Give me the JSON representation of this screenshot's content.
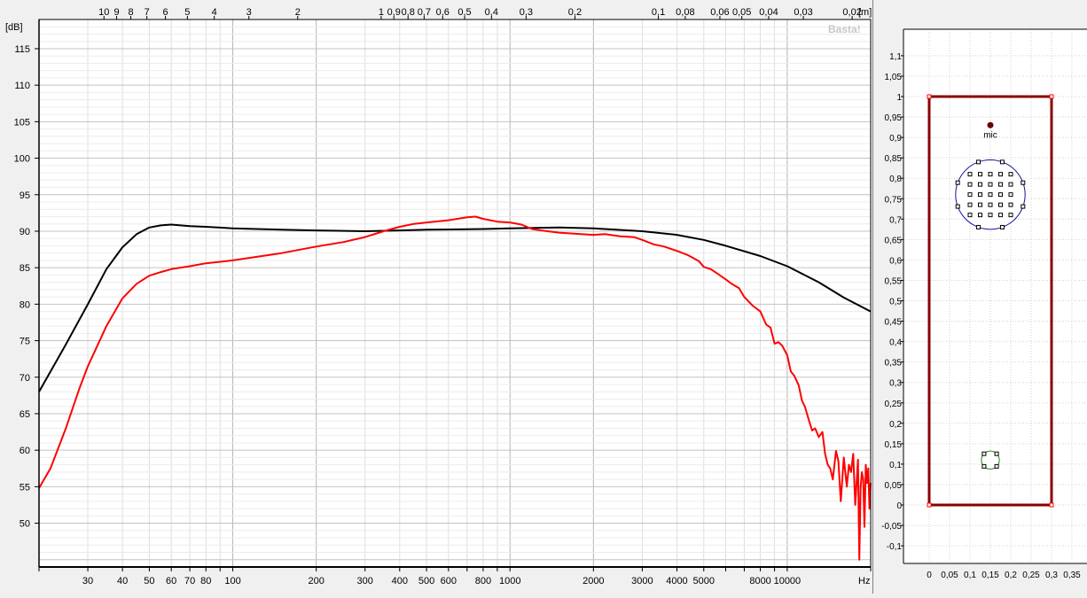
{
  "response_chart": {
    "ylabel": "[dB]",
    "xunit_label": "Hz",
    "top_unit_label": "[m]",
    "watermark": "Basta!",
    "y_ticks": [
      "115",
      "110",
      "105",
      "100",
      "95",
      "90",
      "85",
      "80",
      "75",
      "70",
      "65",
      "60",
      "55",
      "50"
    ],
    "x_tick_labels": [
      "30",
      "40",
      "50",
      "60",
      "70",
      "80",
      "100",
      "200",
      "300",
      "400",
      "500",
      "600",
      "800",
      "1000",
      "2000",
      "3000",
      "4000",
      "5000",
      "8000",
      "10000"
    ],
    "top_tick_labels": [
      "10",
      "9",
      "8",
      "7",
      "6",
      "5",
      "4",
      "3",
      "2",
      "1",
      "0,9",
      "0,8",
      "0,7",
      "0,6",
      "0,5",
      "0,4",
      "0,3",
      "0,2",
      "0,1",
      "0,08",
      "0,06",
      "0,05",
      "0,04",
      "0,03",
      "0,02"
    ],
    "colors": {
      "black_curve": "#000000",
      "red_curve": "#ff0000",
      "grid": "#c8c8c8",
      "bg": "#ffffff"
    }
  },
  "chart_data": [
    {
      "type": "line",
      "title": "",
      "xlabel": "Hz",
      "ylabel": "[dB]",
      "xscale": "log",
      "xlim": [
        20,
        20000
      ],
      "ylim": [
        44,
        119
      ],
      "grid": true,
      "series": [
        {
          "color": "#000000",
          "x": [
            20,
            25,
            30,
            35,
            40,
            45,
            50,
            55,
            60,
            70,
            80,
            100,
            150,
            200,
            300,
            400,
            500,
            800,
            1000,
            1500,
            2000,
            3000,
            4000,
            5000,
            6000,
            8000,
            10000,
            13000,
            16000,
            20000
          ],
          "y": [
            68,
            74.5,
            80,
            84.8,
            87.8,
            89.6,
            90.5,
            90.8,
            90.9,
            90.7,
            90.6,
            90.4,
            90.2,
            90.1,
            90.0,
            90.1,
            90.2,
            90.3,
            90.4,
            90.5,
            90.4,
            90.0,
            89.5,
            88.8,
            88.0,
            86.6,
            85.2,
            83.0,
            80.9,
            79.0
          ]
        },
        {
          "color": "#ff0000",
          "x": [
            20,
            22,
            25,
            28,
            30,
            35,
            40,
            45,
            50,
            55,
            60,
            70,
            80,
            100,
            150,
            200,
            250,
            300,
            350,
            400,
            450,
            500,
            600,
            700,
            750,
            800,
            900,
            1000,
            1100,
            1200,
            1300,
            1500,
            1800,
            2000,
            2200,
            2500,
            2800,
            3000,
            3300,
            3600,
            4000,
            4400,
            4800,
            5000,
            5300,
            5600,
            6000,
            6300,
            6700,
            7000,
            7500,
            8000,
            8400,
            8700,
            9000,
            9300,
            9600,
            10000,
            10300,
            10600,
            11000,
            11300,
            11600,
            12000,
            12300,
            12600,
            13000,
            13400,
            13700,
            14000,
            14300,
            14600,
            15000,
            15300,
            15600,
            16000,
            16400,
            16700,
            17000,
            17300,
            17600,
            18000,
            18200,
            18400,
            18600,
            18800,
            19000,
            19200,
            19400,
            19600,
            19800,
            20000
          ],
          "y": [
            54.8,
            57.5,
            63,
            68.5,
            71.5,
            77.0,
            80.8,
            82.8,
            83.9,
            84.4,
            84.8,
            85.2,
            85.6,
            86.0,
            87.0,
            87.9,
            88.5,
            89.2,
            90.0,
            90.6,
            91.0,
            91.2,
            91.5,
            91.9,
            92.0,
            91.7,
            91.3,
            91.2,
            90.9,
            90.3,
            90.1,
            89.8,
            89.6,
            89.5,
            89.6,
            89.3,
            89.2,
            88.8,
            88.2,
            87.9,
            87.3,
            86.7,
            85.9,
            85.1,
            84.8,
            84.2,
            83.4,
            82.8,
            82.2,
            81.0,
            79.8,
            79.0,
            77.2,
            76.8,
            74.6,
            74.8,
            74.3,
            73.0,
            70.8,
            70.2,
            68.9,
            66.8,
            65.9,
            64.0,
            62.7,
            63.0,
            61.8,
            62.5,
            59.5,
            58.0,
            57.5,
            56.0,
            59.9,
            58.5,
            53.0,
            59.0,
            55.0,
            58.0,
            57.0,
            59.5,
            52.5,
            58.7,
            45.0,
            55.0,
            57.0,
            56.0,
            49.5,
            58.0,
            55.5,
            57.5,
            52.0,
            55.5
          ]
        }
      ]
    },
    {
      "type": "scatter",
      "title": "",
      "xlabel": "",
      "ylabel": "",
      "xlim": [
        -0.02,
        0.37
      ],
      "ylim": [
        -0.15,
        1.17
      ],
      "grid": true,
      "x_ticks": [
        "0",
        "0,05",
        "0,1",
        "0,15",
        "0,2",
        "0,25",
        "0,3",
        "0,35"
      ],
      "y_ticks": [
        "1,1",
        "1,05",
        "1",
        "0,95",
        "0,9",
        "0,85",
        "0,8",
        "0,75",
        "0,7",
        "0,65",
        "0,6",
        "0,55",
        "0,5",
        "0,45",
        "0,4",
        "0,35",
        "0,3",
        "0,25",
        "0,2",
        "0,15",
        "0,1",
        "0,05",
        "0",
        "-0,05",
        "-0,1"
      ],
      "enclosure": {
        "x": [
          0,
          0.3
        ],
        "y": [
          0,
          1
        ]
      },
      "mic": {
        "label": "mic",
        "x": 0.15,
        "y": 0.93
      },
      "woofer": {
        "cx": 0.15,
        "cy": 0.76,
        "r": 0.085
      },
      "port": {
        "cx": 0.15,
        "cy": 0.11,
        "r": 0.022
      }
    }
  ]
}
